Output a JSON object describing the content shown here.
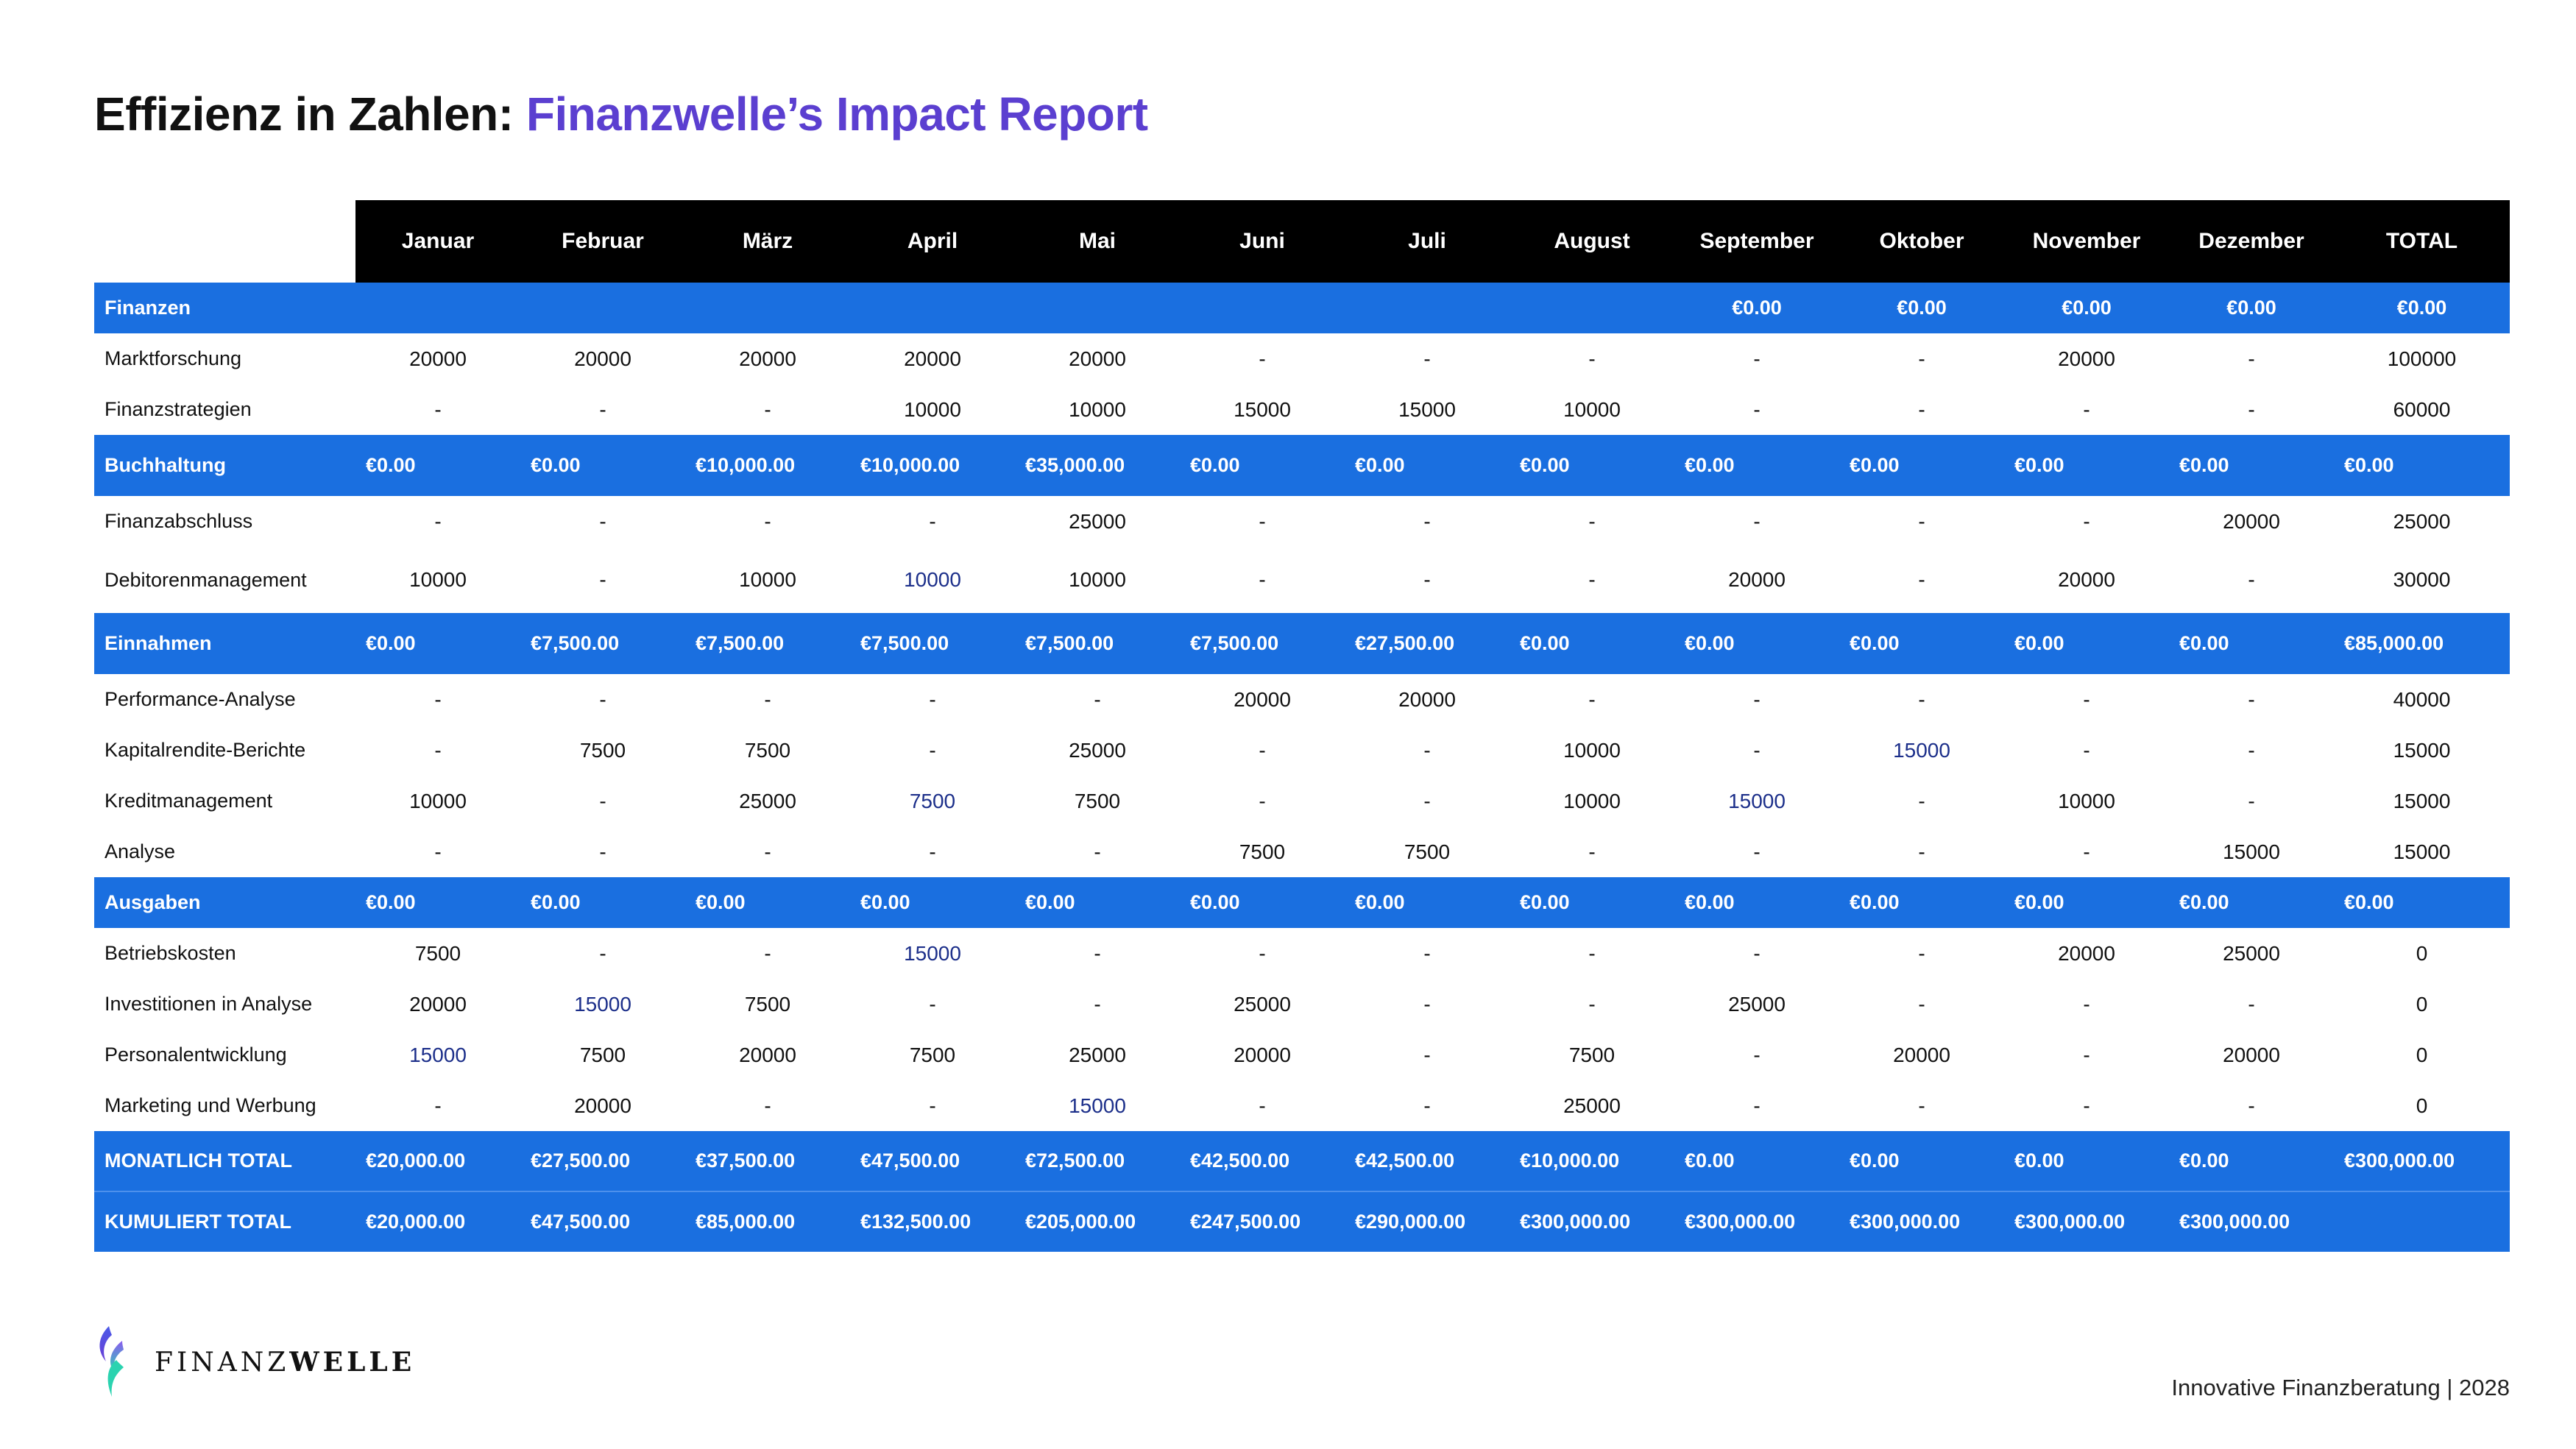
{
  "title": {
    "part1": "Effizienz in Zahlen: ",
    "part2": "Finanzwelle’s Impact Report"
  },
  "colors": {
    "accent_purple": "#5b3fd0",
    "header_black": "#000000",
    "section_blue": "#1a6fe0"
  },
  "table": {
    "columns": [
      "Januar",
      "Februar",
      "März",
      "April",
      "Mai",
      "Juni",
      "Juli",
      "August",
      "September",
      "Oktober",
      "November",
      "Dezember",
      "TOTAL"
    ],
    "finanzen": {
      "label": "Finanzen",
      "values": [
        "",
        "",
        "",
        "",
        "",
        "",
        "",
        "",
        "€0.00",
        "€0.00",
        "€0.00",
        "€0.00",
        "€0.00"
      ],
      "items": [
        {
          "label": "Marktforschung",
          "values": [
            "20000",
            "20000",
            "20000",
            "20000",
            "20000",
            "-",
            "-",
            "-",
            "-",
            "-",
            "20000",
            "-",
            "100000"
          ]
        },
        {
          "label": "Finanzstrategien",
          "values": [
            "-",
            "-",
            "-",
            "10000",
            "10000",
            "15000",
            "15000",
            "10000",
            "-",
            "-",
            "-",
            "-",
            "60000"
          ]
        }
      ]
    },
    "buchhaltung": {
      "label": "Buchhaltung",
      "values": [
        "€0.00",
        "€0.00",
        "€10,000.00",
        "€10,000.00",
        "€35,000.00",
        "€0.00",
        "€0.00",
        "€0.00",
        "€0.00",
        "€0.00",
        "€0.00",
        "€0.00",
        "€0.00"
      ],
      "items": [
        {
          "label": "Finanzabschluss",
          "values": [
            "-",
            "-",
            "-",
            "-",
            "25000",
            "-",
            "-",
            "-",
            "-",
            "-",
            "-",
            "20000",
            "25000"
          ]
        },
        {
          "label": "Debitorenmanagement",
          "values": [
            "10000",
            "-",
            "10000",
            "10000",
            "10000",
            "-",
            "-",
            "-",
            "20000",
            "-",
            "20000",
            "-",
            "30000"
          ]
        }
      ]
    },
    "einnahmen": {
      "label": "Einnahmen",
      "values": [
        "€0.00",
        "€7,500.00",
        "€7,500.00",
        "€7,500.00",
        "€7,500.00",
        "€7,500.00",
        "€27,500.00",
        "€0.00",
        "€0.00",
        "€0.00",
        "€0.00",
        "€0.00",
        "€85,000.00"
      ],
      "items": [
        {
          "label": "Performance-Analyse",
          "values": [
            "-",
            "-",
            "-",
            "-",
            "-",
            "20000",
            "20000",
            "-",
            "-",
            "-",
            "-",
            "-",
            "40000"
          ]
        },
        {
          "label": "Kapitalrendite-Berichte",
          "values": [
            "-",
            "7500",
            "7500",
            "-",
            "25000",
            "-",
            "-",
            "10000",
            "-",
            "15000",
            "-",
            "-",
            "15000"
          ]
        },
        {
          "label": "Kreditmanagement",
          "values": [
            "10000",
            "-",
            "25000",
            "7500",
            "7500",
            "-",
            "-",
            "10000",
            "15000",
            "-",
            "10000",
            "-",
            "15000"
          ]
        },
        {
          "label": "Analyse",
          "values": [
            "-",
            "-",
            "-",
            "-",
            "-",
            "7500",
            "7500",
            "-",
            "-",
            "-",
            "-",
            "15000",
            "15000"
          ]
        }
      ]
    },
    "ausgaben": {
      "label": "Ausgaben",
      "values": [
        "€0.00",
        "€0.00",
        "€0.00",
        "€0.00",
        "€0.00",
        "€0.00",
        "€0.00",
        "€0.00",
        "€0.00",
        "€0.00",
        "€0.00",
        "€0.00",
        "€0.00"
      ],
      "items": [
        {
          "label": "Betriebskosten",
          "values": [
            "7500",
            "-",
            "-",
            "15000",
            "-",
            "-",
            "-",
            "-",
            "-",
            "-",
            "20000",
            "25000",
            "0"
          ]
        },
        {
          "label": "Investitionen in Analyse",
          "values": [
            "20000",
            "15000",
            "7500",
            "-",
            "-",
            "25000",
            "-",
            "-",
            "25000",
            "-",
            "-",
            "-",
            "0"
          ]
        },
        {
          "label": "Personalentwicklung",
          "values": [
            "15000",
            "7500",
            "20000",
            "7500",
            "25000",
            "20000",
            "-",
            "7500",
            "-",
            "20000",
            "-",
            "20000",
            "0"
          ]
        },
        {
          "label": "Marketing und Werbung",
          "values": [
            "-",
            "20000",
            "-",
            "-",
            "15000",
            "-",
            "-",
            "25000",
            "-",
            "-",
            "-",
            "-",
            "0"
          ]
        }
      ]
    },
    "monatlich_total": {
      "label": "MONATLICH TOTAL",
      "values": [
        "€20,000.00",
        "€27,500.00",
        "€37,500.00",
        "€47,500.00",
        "€72,500.00",
        "€42,500.00",
        "€42,500.00",
        "€10,000.00",
        "€0.00",
        "€0.00",
        "€0.00",
        "€0.00",
        "€300,000.00"
      ]
    },
    "kumuliert_total": {
      "label": "KUMULIERT TOTAL",
      "values": [
        "€20,000.00",
        "€47,500.00",
        "€85,000.00",
        "€132,500.00",
        "€205,000.00",
        "€247,500.00",
        "€290,000.00",
        "€300,000.00",
        "€300,000.00",
        "€300,000.00",
        "€300,000.00",
        "€300,000.00",
        ""
      ]
    }
  },
  "logo": {
    "text_light": "FINANZ",
    "text_bold": "WELLE",
    "icon": "wave-flame-logo-icon"
  },
  "footer": {
    "tagline": "Innovative Finanzberatung | 2028"
  }
}
